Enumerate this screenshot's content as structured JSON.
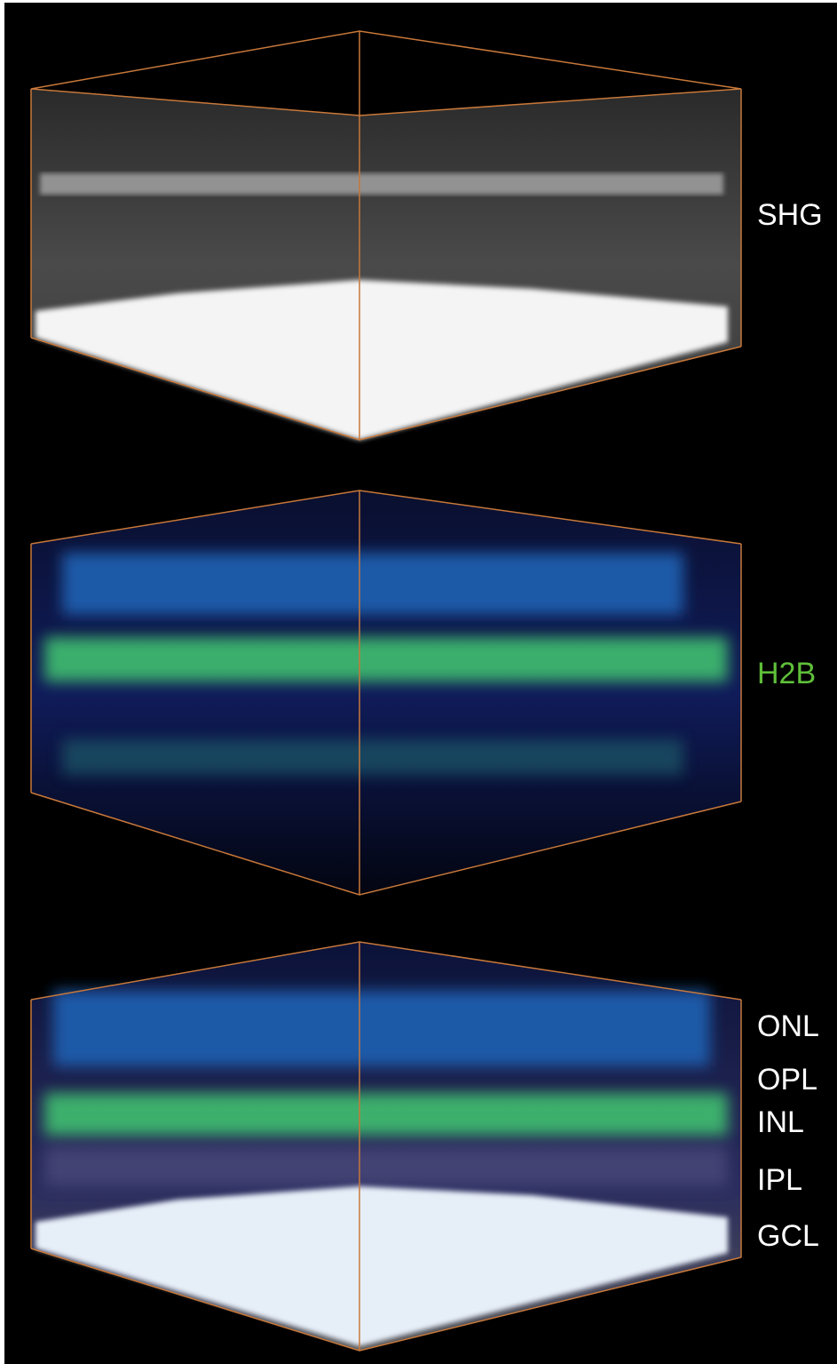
{
  "panels": [
    {
      "labels": [
        "SHG"
      ]
    },
    {
      "labels": [
        "H2B"
      ]
    },
    {
      "labels": [
        "ONL",
        "OPL",
        "INL",
        "IPL",
        "GCL"
      ]
    }
  ]
}
